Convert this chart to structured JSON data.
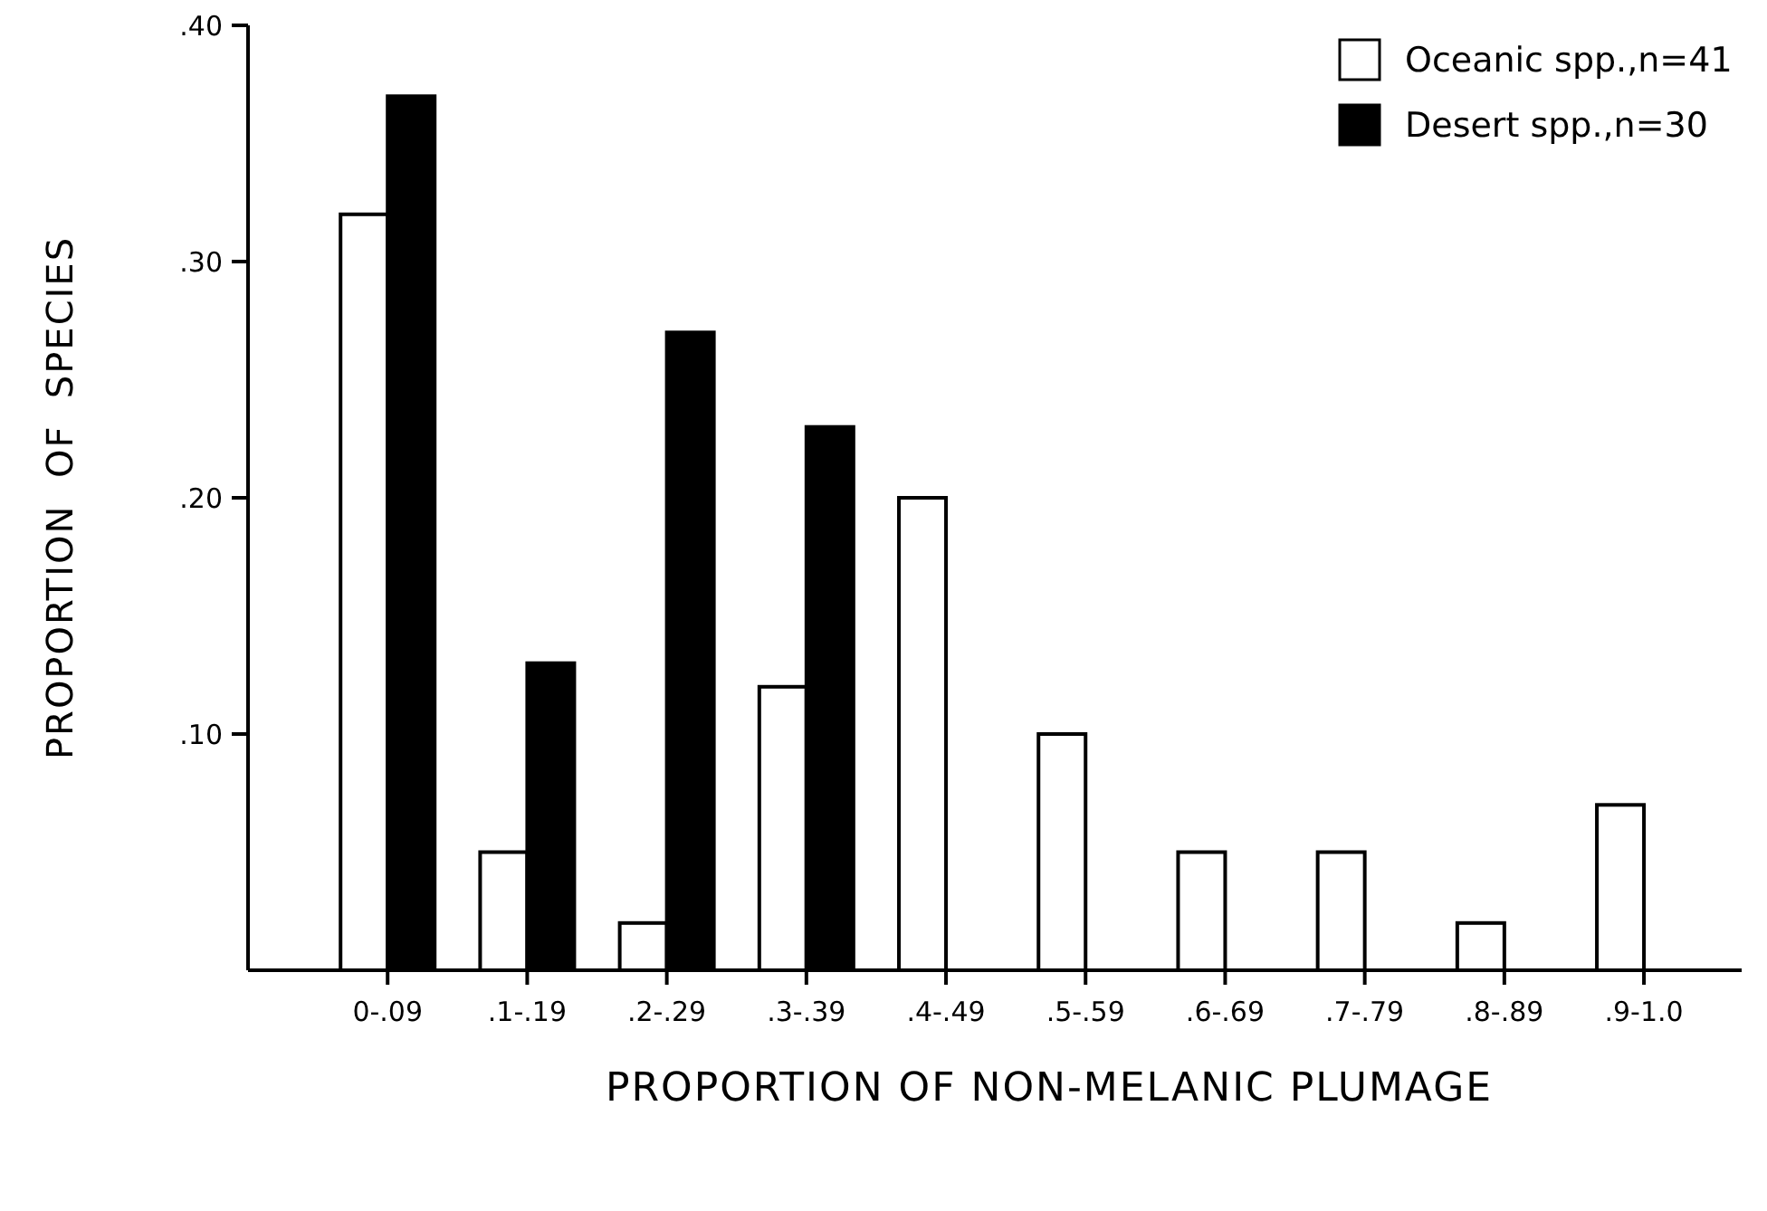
{
  "chart_data": {
    "type": "bar",
    "xlabel": "PROPORTION OF NON-MELANIC PLUMAGE",
    "ylabel": "PROPORTION  OF  SPECIES",
    "categories": [
      "0-.09",
      ".1-.19",
      ".2-.29",
      ".3-.39",
      ".4-.49",
      ".5-.59",
      ".6-.69",
      ".7-.79",
      ".8-.89",
      ".9-1.0"
    ],
    "series": [
      {
        "name": "Oceanic spp.,n=41",
        "color": "#ffffff",
        "values": [
          0.32,
          0.05,
          0.02,
          0.12,
          0.2,
          0.1,
          0.05,
          0.05,
          0.02,
          0.07
        ]
      },
      {
        "name": "Desert spp.,n=30",
        "color": "#000000",
        "values": [
          0.37,
          0.13,
          0.27,
          0.23,
          0,
          0,
          0,
          0,
          0,
          0
        ]
      }
    ],
    "ylim": [
      0,
      0.4
    ],
    "yticks": [
      {
        "value": 0.1,
        "label": ".10"
      },
      {
        "value": 0.2,
        "label": ".20"
      },
      {
        "value": 0.3,
        "label": ".30"
      },
      {
        "value": 0.4,
        "label": ".40"
      }
    ],
    "legend": "top right",
    "grid": false
  }
}
